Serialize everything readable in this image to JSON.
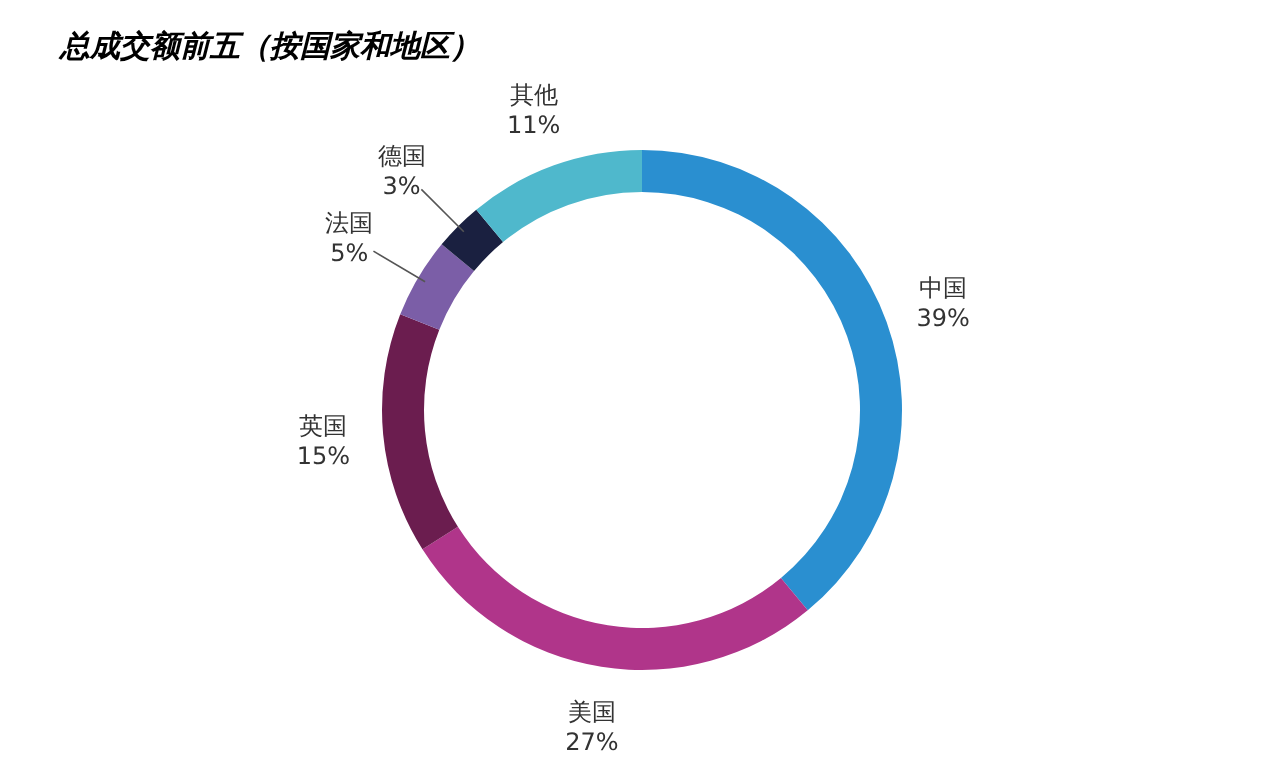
{
  "chart_data": {
    "type": "donut",
    "title": "总成交额前五（按国家和地区）",
    "categories": [
      "中国",
      "美国",
      "英国",
      "法国",
      "德国",
      "其他"
    ],
    "values": [
      39,
      27,
      15,
      5,
      3,
      11
    ],
    "value_labels": [
      "39%",
      "27%",
      "15%",
      "5%",
      "3%",
      "11%"
    ],
    "colors": [
      "#2a8fd0",
      "#b0358a",
      "#6b1d4f",
      "#7b5ea7",
      "#1a2040",
      "#4fb8cc"
    ]
  }
}
